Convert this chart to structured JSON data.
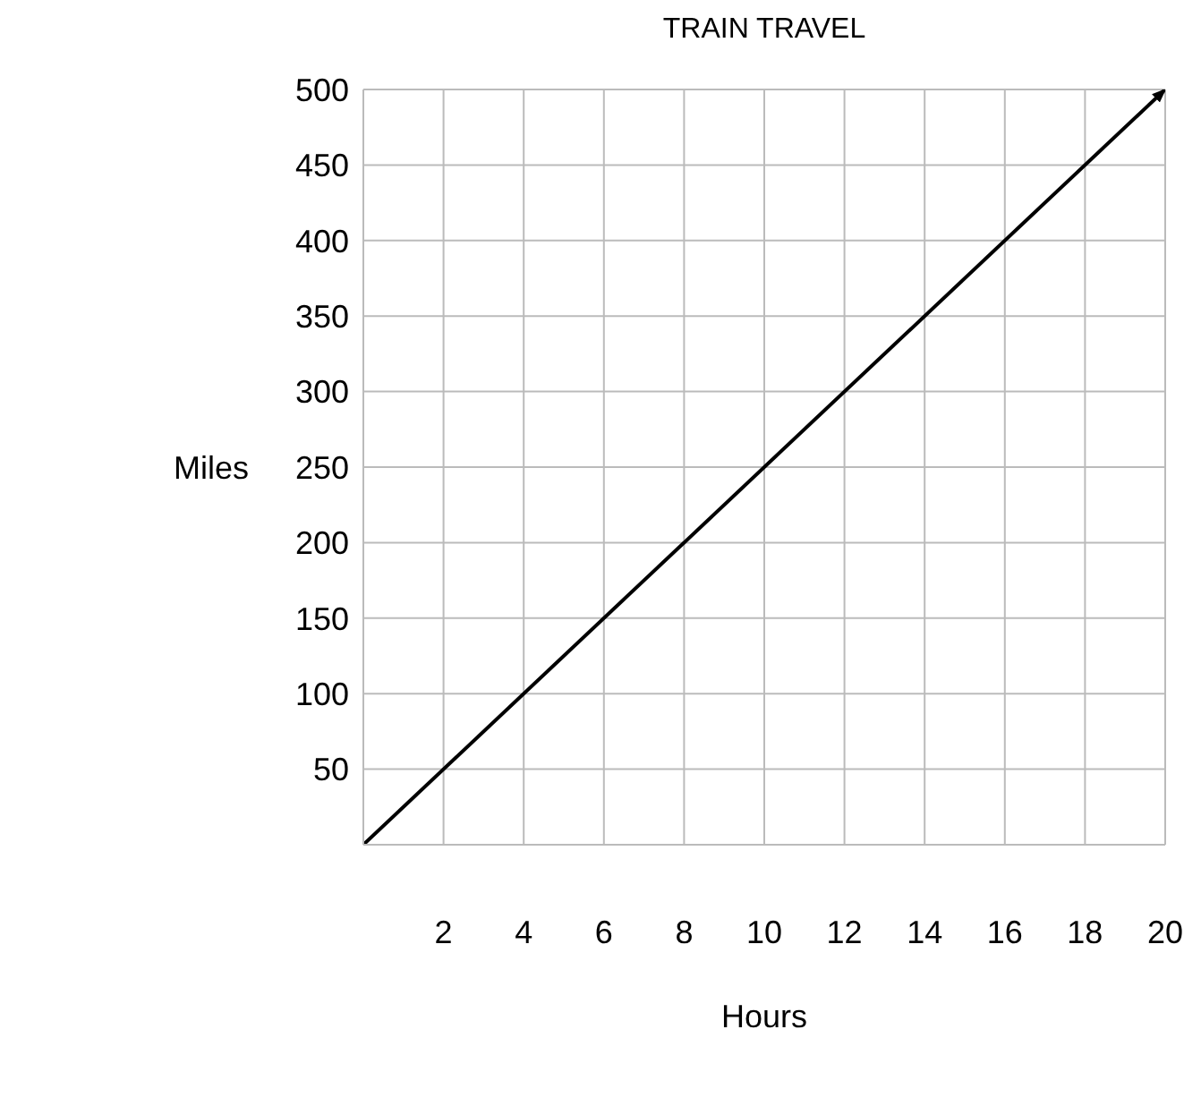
{
  "chart_data": {
    "type": "line",
    "title": "TRAIN TRAVEL",
    "xlabel": "Hours",
    "ylabel": "Miles",
    "x": [
      0,
      20
    ],
    "series": [
      {
        "color": "#000000",
        "values": [
          0,
          500
        ]
      }
    ],
    "xlim": [
      0,
      20
    ],
    "xticks": [
      2,
      4,
      6,
      8,
      10,
      12,
      14,
      16,
      18,
      20
    ],
    "ylim": [
      0,
      500
    ],
    "yticks": [
      50,
      100,
      150,
      200,
      250,
      300,
      350,
      400,
      450,
      500
    ],
    "grid": true,
    "marker": "none",
    "line_style": "solid",
    "legend": false
  }
}
